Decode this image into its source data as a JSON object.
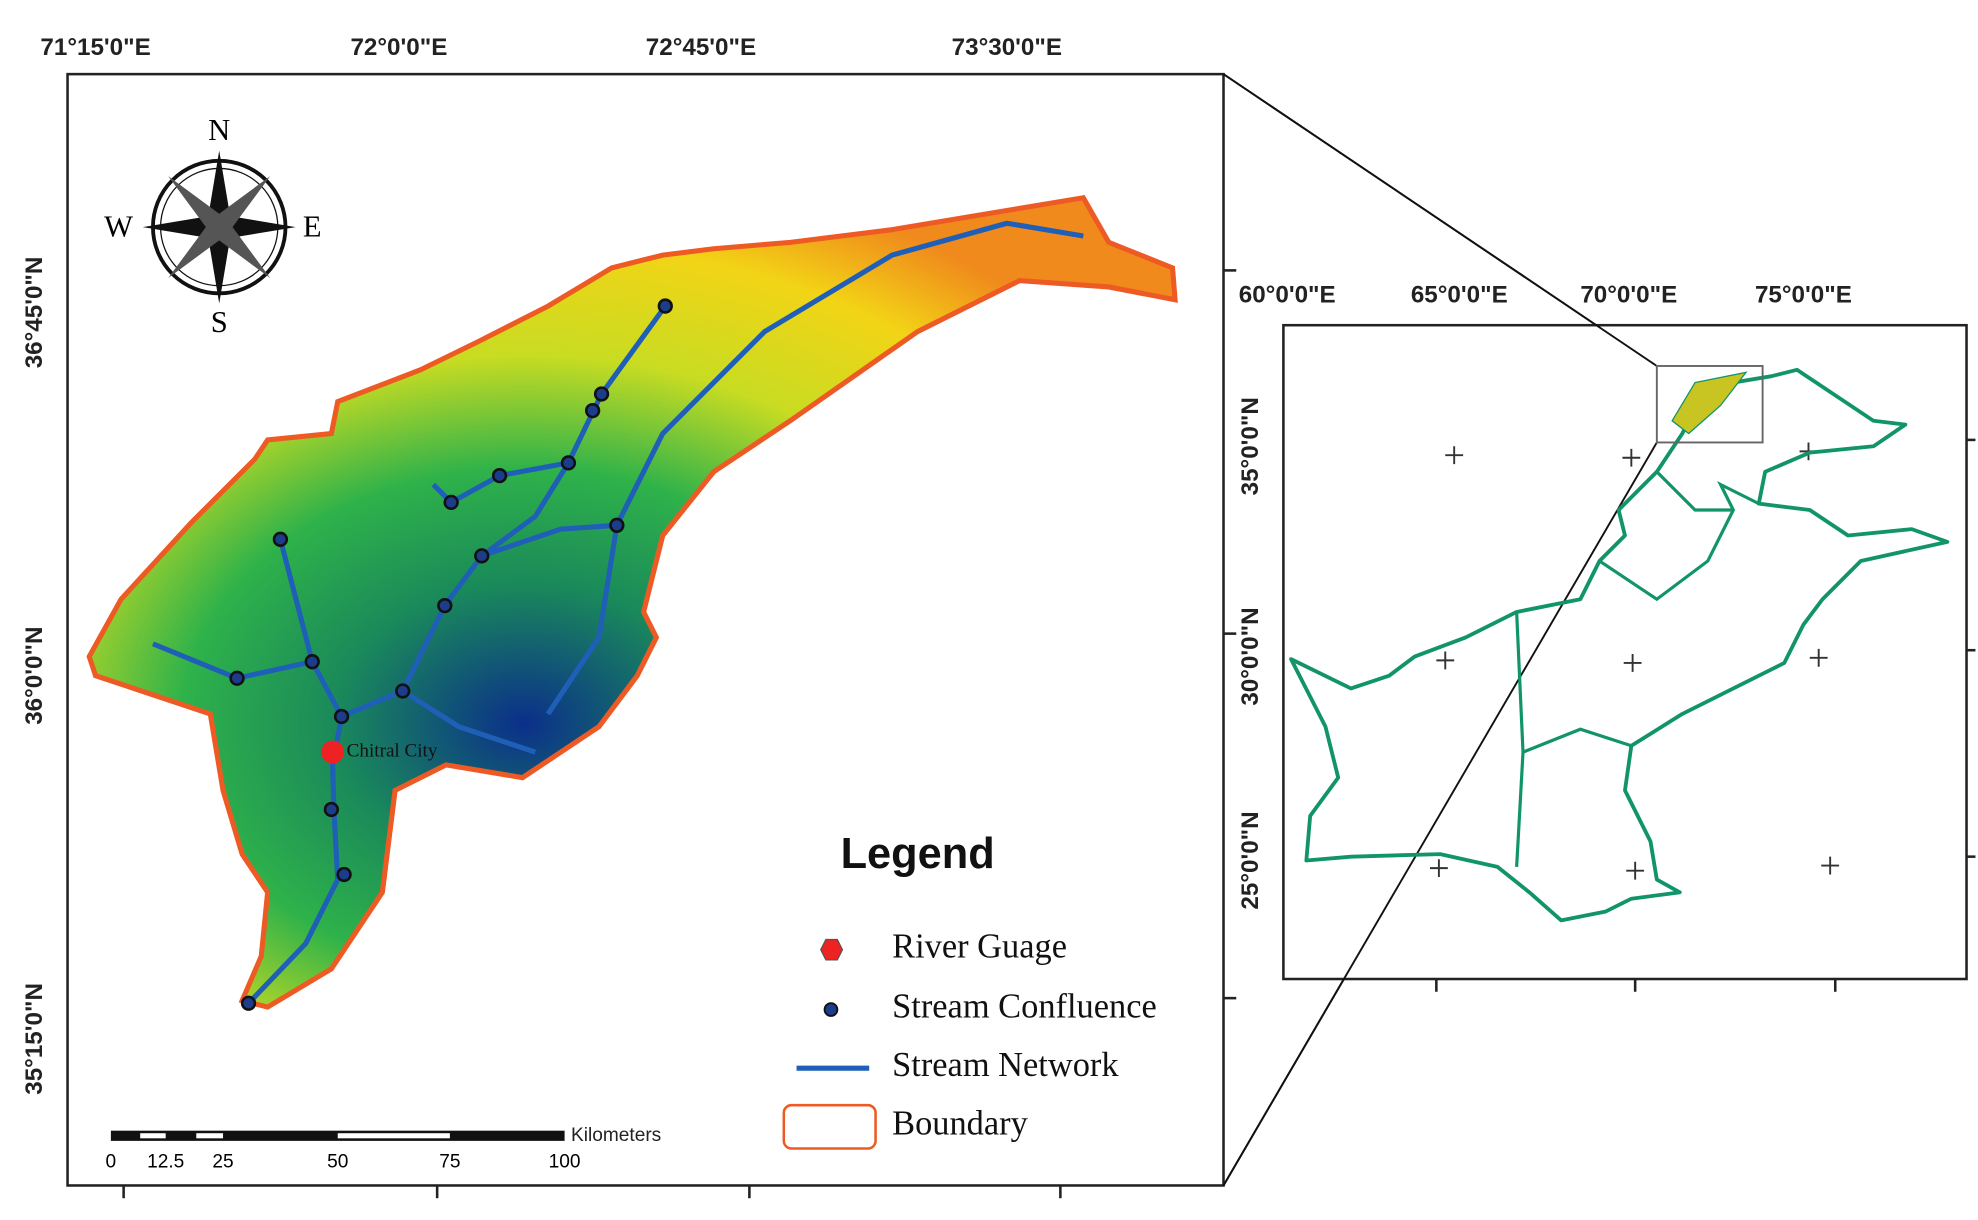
{
  "main_map": {
    "lon_labels": [
      "71°15'0\"E",
      "72°0'0\"E",
      "72°45'0\"E",
      "73°30'0\"E"
    ],
    "lat_labels": [
      "36°45'0\"N",
      "36°0'0\"N",
      "35°15'0\"N"
    ],
    "compass": {
      "north": "N",
      "east": "E",
      "south": "S",
      "west": "W"
    },
    "city_label": "Chitral City",
    "scale_bar": {
      "unit": "Kilometers",
      "labels": [
        "0",
        "12.5",
        "25",
        "50",
        "75",
        "100"
      ]
    }
  },
  "legend": {
    "title": "Legend",
    "items": [
      "River Guage",
      "Stream Confluence",
      "Stream Network",
      "Boundary"
    ]
  },
  "inset_map": {
    "lon_labels": [
      "60°0'0\"E",
      "65°0'0\"E",
      "70°0'0\"E",
      "75°0'0\"E"
    ],
    "lat_labels": [
      "35°0'0\"N",
      "30°0'0\"N",
      "25°0'0\"N"
    ]
  }
}
